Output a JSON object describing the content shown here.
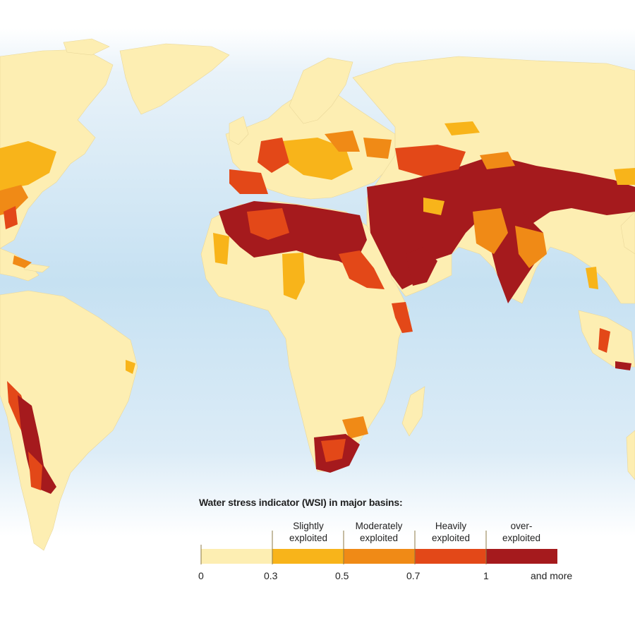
{
  "colors": {
    "ocean_top": "#e6f1f8",
    "ocean_mid": "#c9e3f3",
    "land": "#fdeeb2",
    "slightly": "#f8b41a",
    "moderately": "#f08a16",
    "heavily": "#e34818",
    "over": "#a51a1d"
  },
  "legend": {
    "title": "Water stress indicator (WSI) in major basins:",
    "categories": [
      {
        "line1": "Slightly",
        "line2": "exploited"
      },
      {
        "line1": "Moderately",
        "line2": "exploited"
      },
      {
        "line1": "Heavily",
        "line2": "exploited"
      },
      {
        "line1": "over-",
        "line2": "exploited"
      }
    ],
    "ticks": [
      "0",
      "0.3",
      "0.5",
      "0.7",
      "1",
      "and more"
    ],
    "scale_breaks": [
      0,
      0.3,
      0.5,
      0.7,
      1
    ]
  }
}
